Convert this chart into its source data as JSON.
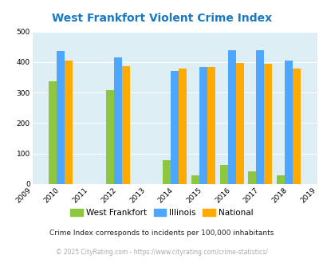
{
  "title": "West Frankfort Violent Crime Index",
  "all_years": [
    2009,
    2010,
    2011,
    2012,
    2013,
    2014,
    2015,
    2016,
    2017,
    2018,
    2019
  ],
  "bar_years": [
    2010,
    2012,
    2014,
    2015,
    2016,
    2017,
    2018
  ],
  "west_frankfort": [
    338,
    307,
    78,
    30,
    63,
    43,
    30
  ],
  "illinois": [
    435,
    415,
    370,
    383,
    440,
    438,
    405
  ],
  "national": [
    405,
    387,
    378,
    383,
    397,
    394,
    379
  ],
  "color_wf": "#8dc63f",
  "color_il": "#4da6ff",
  "color_nat": "#ffaa00",
  "bg_color": "#ddeef5",
  "ylim": [
    0,
    500
  ],
  "yticks": [
    0,
    100,
    200,
    300,
    400,
    500
  ],
  "legend_labels": [
    "West Frankfort",
    "Illinois",
    "National"
  ],
  "footnote1": "Crime Index corresponds to incidents per 100,000 inhabitants",
  "footnote2": "© 2025 CityRating.com - https://www.cityrating.com/crime-statistics/",
  "title_color": "#1a78c2",
  "footnote1_color": "#222222",
  "footnote2_color": "#aaaaaa",
  "grid_color": "#c8dce4"
}
